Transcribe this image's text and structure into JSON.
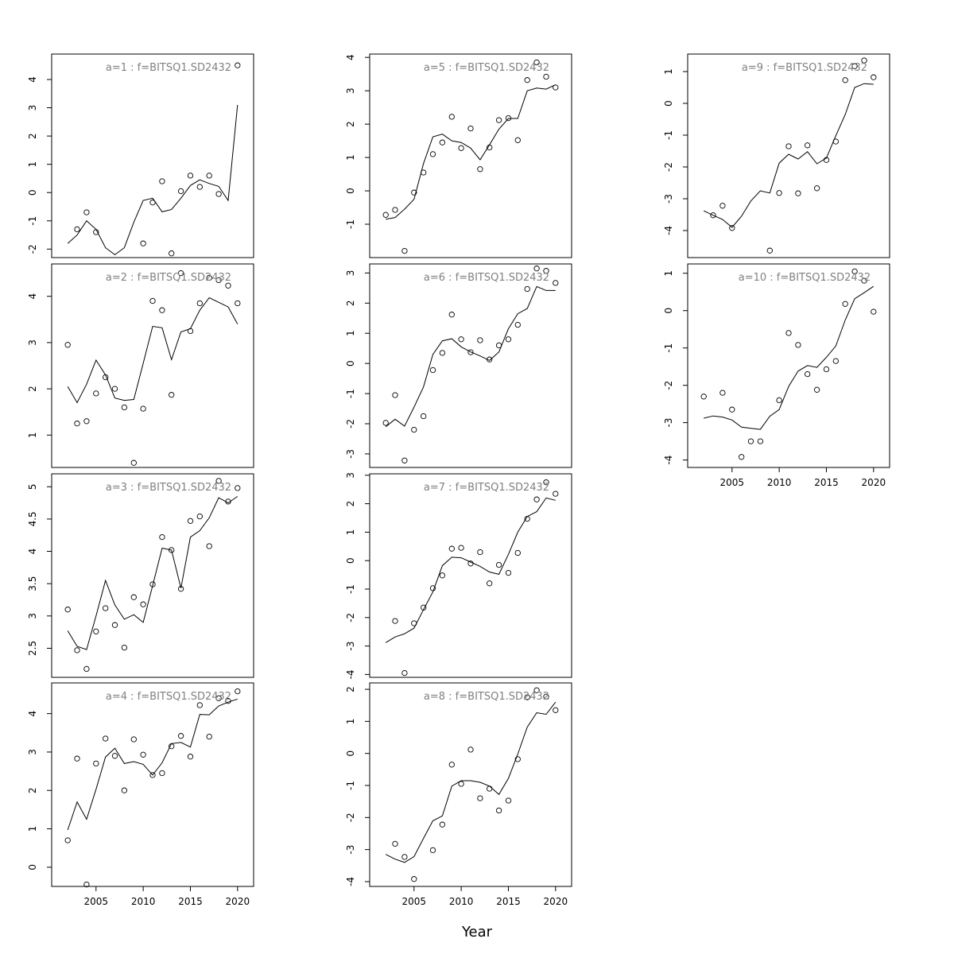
{
  "xlabel": "Year",
  "chart_data": [
    {
      "type": "scatter",
      "title": "a=1  :  f=BITSQ1.SD2432",
      "ylim": [
        -2.3,
        4.9
      ],
      "yticks": [
        -2,
        -1,
        0,
        1,
        2,
        3,
        4
      ],
      "x": [
        2002,
        2003,
        2004,
        2005,
        2006,
        2007,
        2008,
        2009,
        2010,
        2011,
        2012,
        2013,
        2014,
        2015,
        2016,
        2017,
        2018,
        2019,
        2020
      ],
      "observed": [
        null,
        -1.3,
        -0.7,
        -1.4,
        null,
        null,
        null,
        null,
        -1.8,
        -0.35,
        0.4,
        -2.15,
        0.05,
        0.6,
        0.2,
        0.6,
        -0.05,
        null,
        4.5
      ],
      "fitted": [
        -1.8,
        -1.5,
        -1.0,
        -1.3,
        -1.95,
        -2.2,
        -1.95,
        -1.05,
        -0.28,
        -0.2,
        -0.68,
        -0.6,
        -0.2,
        0.25,
        0.45,
        0.32,
        0.22,
        -0.28,
        3.1
      ]
    },
    {
      "type": "scatter",
      "title": "a=2  :  f=BITSQ1.SD2432",
      "ylim": [
        0.3,
        4.7
      ],
      "yticks": [
        1,
        2,
        3,
        4
      ],
      "x": [
        2002,
        2003,
        2004,
        2005,
        2006,
        2007,
        2008,
        2009,
        2010,
        2011,
        2012,
        2013,
        2014,
        2015,
        2016,
        2017,
        2018,
        2019,
        2020
      ],
      "observed": [
        2.95,
        1.25,
        1.3,
        1.9,
        2.25,
        2.0,
        1.6,
        0.4,
        1.57,
        3.9,
        3.7,
        1.87,
        4.5,
        3.25,
        3.85,
        4.4,
        4.35,
        4.23,
        3.85
      ],
      "fitted": [
        2.05,
        1.7,
        2.1,
        2.62,
        2.3,
        1.8,
        1.75,
        1.77,
        2.55,
        3.35,
        3.32,
        2.63,
        3.23,
        3.3,
        3.7,
        3.97,
        3.87,
        3.77,
        3.4
      ]
    },
    {
      "type": "scatter",
      "title": "a=3  :  f=BITSQ1.SD2432",
      "ylim": [
        2.05,
        5.2
      ],
      "yticks": [
        2.5,
        3.0,
        3.5,
        4.0,
        4.5,
        5.0
      ],
      "x": [
        2002,
        2003,
        2004,
        2005,
        2006,
        2007,
        2008,
        2009,
        2010,
        2011,
        2012,
        2013,
        2014,
        2015,
        2016,
        2017,
        2018,
        2019,
        2020
      ],
      "observed": [
        3.1,
        2.47,
        2.18,
        2.76,
        3.12,
        2.86,
        2.51,
        3.29,
        3.18,
        3.49,
        4.22,
        4.02,
        3.42,
        4.47,
        4.54,
        4.08,
        5.09,
        4.77,
        4.98
      ],
      "fitted": [
        2.77,
        2.53,
        2.48,
        3.0,
        3.55,
        3.17,
        2.95,
        3.02,
        2.9,
        3.47,
        4.05,
        4.02,
        3.43,
        4.22,
        4.32,
        4.52,
        4.83,
        4.75,
        4.85
      ]
    },
    {
      "type": "scatter",
      "title": "a=4  :  f=BITSQ1.SD2432",
      "ylim": [
        -0.5,
        4.8
      ],
      "yticks": [
        0,
        1,
        2,
        3,
        4
      ],
      "x": [
        2002,
        2003,
        2004,
        2005,
        2006,
        2007,
        2008,
        2009,
        2010,
        2011,
        2012,
        2013,
        2014,
        2015,
        2016,
        2017,
        2018,
        2019,
        2020
      ],
      "observed": [
        0.7,
        2.83,
        -0.45,
        2.7,
        3.35,
        2.9,
        2.0,
        3.33,
        2.93,
        2.4,
        2.45,
        3.15,
        3.42,
        2.88,
        4.22,
        3.4,
        4.4,
        4.33,
        4.58
      ],
      "fitted": [
        0.97,
        1.7,
        1.25,
        2.03,
        2.87,
        3.1,
        2.7,
        2.75,
        2.68,
        2.4,
        2.72,
        3.22,
        3.25,
        3.13,
        3.98,
        3.97,
        4.2,
        4.3,
        4.38
      ]
    },
    {
      "type": "scatter",
      "title": "a=5  :  f=BITSQ1.SD2432",
      "ylim": [
        -2.0,
        4.1
      ],
      "yticks": [
        -1,
        0,
        1,
        2,
        3,
        4
      ],
      "x": [
        2002,
        2003,
        2004,
        2005,
        2006,
        2007,
        2008,
        2009,
        2010,
        2011,
        2012,
        2013,
        2014,
        2015,
        2016,
        2017,
        2018,
        2019,
        2020
      ],
      "observed": [
        -0.72,
        -0.57,
        -1.8,
        -0.05,
        0.55,
        1.1,
        1.45,
        2.22,
        1.28,
        1.87,
        0.65,
        1.3,
        2.12,
        2.18,
        1.52,
        3.32,
        3.85,
        3.42,
        3.1
      ],
      "fitted": [
        -0.85,
        -0.8,
        -0.55,
        -0.25,
        0.82,
        1.62,
        1.7,
        1.5,
        1.45,
        1.28,
        0.93,
        1.38,
        1.85,
        2.17,
        2.17,
        3.0,
        3.08,
        3.05,
        3.18
      ]
    },
    {
      "type": "scatter",
      "title": "a=6  :  f=BITSQ1.SD2432",
      "ylim": [
        -3.45,
        3.3
      ],
      "yticks": [
        -3,
        -2,
        -1,
        0,
        1,
        2,
        3
      ],
      "x": [
        2002,
        2003,
        2004,
        2005,
        2006,
        2007,
        2008,
        2009,
        2010,
        2011,
        2012,
        2013,
        2014,
        2015,
        2016,
        2017,
        2018,
        2019,
        2020
      ],
      "observed": [
        -1.97,
        -1.05,
        -3.22,
        -2.2,
        -1.75,
        -0.22,
        0.35,
        1.62,
        0.8,
        0.37,
        0.77,
        0.13,
        0.6,
        0.8,
        1.28,
        2.47,
        3.15,
        3.07,
        2.67
      ],
      "fitted": [
        -2.1,
        -1.85,
        -2.08,
        -1.45,
        -0.78,
        0.3,
        0.75,
        0.82,
        0.55,
        0.38,
        0.25,
        0.1,
        0.38,
        1.15,
        1.65,
        1.82,
        2.55,
        2.42,
        2.42
      ]
    },
    {
      "type": "scatter",
      "title": "a=7  :  f=BITSQ1.SD2432",
      "ylim": [
        -4.1,
        3.05
      ],
      "yticks": [
        -4,
        -3,
        -2,
        -1,
        0,
        1,
        2,
        3
      ],
      "x": [
        2002,
        2003,
        2004,
        2005,
        2006,
        2007,
        2008,
        2009,
        2010,
        2011,
        2012,
        2013,
        2014,
        2015,
        2016,
        2017,
        2018,
        2019,
        2020
      ],
      "observed": [
        null,
        -2.12,
        -3.95,
        -2.2,
        -1.65,
        -0.97,
        -0.52,
        0.42,
        0.45,
        -0.1,
        0.3,
        -0.8,
        -0.15,
        -0.43,
        0.27,
        1.47,
        2.15,
        2.75,
        2.35
      ],
      "fitted": [
        -2.88,
        -2.68,
        -2.57,
        -2.37,
        -1.72,
        -1.1,
        -0.18,
        0.12,
        0.1,
        -0.05,
        -0.2,
        -0.4,
        -0.48,
        0.22,
        1.0,
        1.55,
        1.72,
        2.2,
        2.12
      ]
    },
    {
      "type": "scatter",
      "title": "a=8  :  f=BITSQ1.SD2432",
      "ylim": [
        -4.15,
        2.2
      ],
      "yticks": [
        -4,
        -3,
        -2,
        -1,
        0,
        1,
        2
      ],
      "x": [
        2002,
        2003,
        2004,
        2005,
        2006,
        2007,
        2008,
        2009,
        2010,
        2011,
        2012,
        2013,
        2014,
        2015,
        2016,
        2017,
        2018,
        2019,
        2020
      ],
      "observed": [
        null,
        -2.82,
        -3.23,
        -3.92,
        null,
        -3.02,
        -2.22,
        -0.35,
        -0.95,
        0.12,
        -1.4,
        -1.1,
        -1.78,
        -1.47,
        -0.18,
        1.75,
        1.97,
        1.77,
        1.35
      ],
      "fitted": [
        -3.15,
        -3.3,
        -3.4,
        -3.22,
        -2.65,
        -2.1,
        -1.95,
        -1.02,
        -0.85,
        -0.85,
        -0.9,
        -1.02,
        -1.28,
        -0.78,
        -0.02,
        0.82,
        1.27,
        1.22,
        1.6
      ]
    },
    {
      "type": "scatter",
      "title": "a=9  :  f=BITSQ1.SD2432",
      "ylim": [
        -4.85,
        1.55
      ],
      "yticks": [
        -4,
        -3,
        -2,
        -1,
        0,
        1
      ],
      "x": [
        2002,
        2003,
        2004,
        2005,
        2006,
        2007,
        2008,
        2009,
        2010,
        2011,
        2012,
        2013,
        2014,
        2015,
        2016,
        2017,
        2018,
        2019,
        2020
      ],
      "observed": [
        null,
        -3.52,
        -3.22,
        -3.92,
        null,
        null,
        null,
        -4.63,
        -2.82,
        -1.35,
        -2.83,
        -1.32,
        -2.67,
        -1.78,
        -1.2,
        0.73,
        1.17,
        1.35,
        0.82
      ],
      "fitted": [
        -3.38,
        -3.52,
        -3.65,
        -3.9,
        -3.55,
        -3.07,
        -2.75,
        -2.82,
        -1.88,
        -1.6,
        -1.75,
        -1.52,
        -1.9,
        -1.72,
        -1.02,
        -0.35,
        0.5,
        0.62,
        0.6
      ]
    },
    {
      "type": "scatter",
      "title": "a=10  :  f=BITSQ1.SD2432",
      "ylim": [
        -4.2,
        1.25
      ],
      "yticks": [
        -4,
        -3,
        -2,
        -1,
        0,
        1
      ],
      "x": [
        2002,
        2003,
        2004,
        2005,
        2006,
        2007,
        2008,
        2009,
        2010,
        2011,
        2012,
        2013,
        2014,
        2015,
        2016,
        2017,
        2018,
        2019,
        2020
      ],
      "observed": [
        -2.3,
        null,
        -2.2,
        -2.65,
        -3.92,
        -3.5,
        -3.5,
        null,
        -2.4,
        -0.6,
        -0.92,
        -1.7,
        -2.12,
        -1.57,
        -1.35,
        0.18,
        1.05,
        0.8,
        -0.03
      ],
      "fitted": [
        -2.88,
        -2.82,
        -2.85,
        -2.93,
        -3.12,
        -3.15,
        -3.18,
        -2.83,
        -2.65,
        -2.03,
        -1.62,
        -1.47,
        -1.52,
        -1.25,
        -0.95,
        -0.25,
        0.32,
        0.48,
        0.65
      ]
    }
  ],
  "xaxis": {
    "range": [
      2000.3,
      2021.7
    ],
    "ticks": [
      2005,
      2010,
      2015,
      2020
    ]
  }
}
